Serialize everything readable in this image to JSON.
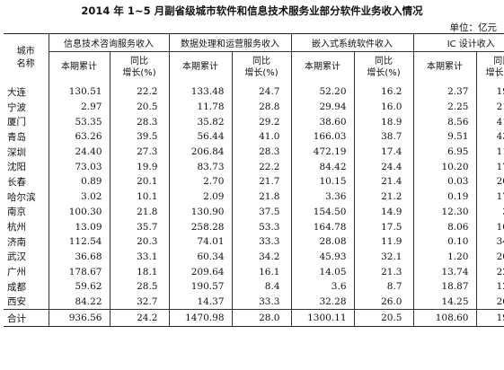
{
  "title": "2014 年 1~5 月副省级城市软件和信息技术服务业部分软件业务收入情况",
  "unit": "单位：亿元",
  "headers": {
    "city_line1": "城市",
    "city_line2": "名称",
    "groups": [
      "信息技术咨询服务收入",
      "数据处理和运营服务收入",
      "嵌入式系统软件收入",
      "IC 设计收入"
    ],
    "cumulative": "本期累计",
    "yoy_line1": "同比",
    "yoy_line2": "增长(%)"
  },
  "rows": [
    {
      "city": "大连",
      "v": [
        "130.51",
        "22.2",
        "133.48",
        "24.7",
        "52.20",
        "16.2",
        "2.37",
        "19.0"
      ]
    },
    {
      "city": "宁波",
      "v": [
        "2.97",
        "20.5",
        "11.78",
        "28.8",
        "29.94",
        "16.0",
        "2.25",
        "21.7"
      ]
    },
    {
      "city": "厦门",
      "v": [
        "53.35",
        "28.3",
        "35.82",
        "29.2",
        "38.60",
        "18.9",
        "8.56",
        "41.8"
      ]
    },
    {
      "city": "青岛",
      "v": [
        "63.26",
        "39.5",
        "56.44",
        "41.0",
        "166.03",
        "38.7",
        "9.51",
        "43.3"
      ]
    },
    {
      "city": "深圳",
      "v": [
        "24.40",
        "27.3",
        "206.84",
        "28.3",
        "472.19",
        "17.4",
        "6.95",
        "11.6"
      ]
    },
    {
      "city": "沈阳",
      "v": [
        "73.03",
        "19.9",
        "83.73",
        "22.2",
        "84.42",
        "24.4",
        "10.20",
        "17.2"
      ]
    },
    {
      "city": "长春",
      "v": [
        "0.89",
        "20.1",
        "2.70",
        "21.7",
        "10.15",
        "21.4",
        "0.03",
        "20.7"
      ]
    },
    {
      "city": "哈尔滨",
      "v": [
        "3.02",
        "10.1",
        "2.09",
        "21.8",
        "3.36",
        "21.2",
        "0.19",
        "17.0"
      ]
    },
    {
      "city": "南京",
      "v": [
        "100.30",
        "21.8",
        "130.90",
        "37.5",
        "154.50",
        "14.9",
        "12.30",
        "3.3"
      ]
    },
    {
      "city": "杭州",
      "v": [
        "13.09",
        "35.7",
        "258.28",
        "53.3",
        "164.78",
        "17.5",
        "8.06",
        "10.6"
      ]
    },
    {
      "city": "济南",
      "v": [
        "112.54",
        "20.3",
        "74.01",
        "33.3",
        "28.08",
        "11.9",
        "0.10",
        "34.9"
      ]
    },
    {
      "city": "武汉",
      "v": [
        "36.68",
        "33.1",
        "60.34",
        "34.2",
        "45.93",
        "32.1",
        "1.20",
        "20.4"
      ]
    },
    {
      "city": "广州",
      "v": [
        "178.67",
        "18.1",
        "209.64",
        "16.1",
        "14.05",
        "21.3",
        "13.74",
        "22.1"
      ]
    },
    {
      "city": "成都",
      "v": [
        "59.62",
        "28.5",
        "190.57",
        "8.4",
        "3.6",
        "8.7",
        "18.87",
        "12.9"
      ]
    },
    {
      "city": "西安",
      "v": [
        "84.22",
        "32.7",
        "14.37",
        "33.3",
        "32.28",
        "26.0",
        "14.25",
        "26.5"
      ]
    }
  ],
  "total": {
    "city": "合计",
    "v": [
      "936.56",
      "24.2",
      "1470.98",
      "28.0",
      "1300.11",
      "20.5",
      "108.60",
      "19.1"
    ]
  }
}
